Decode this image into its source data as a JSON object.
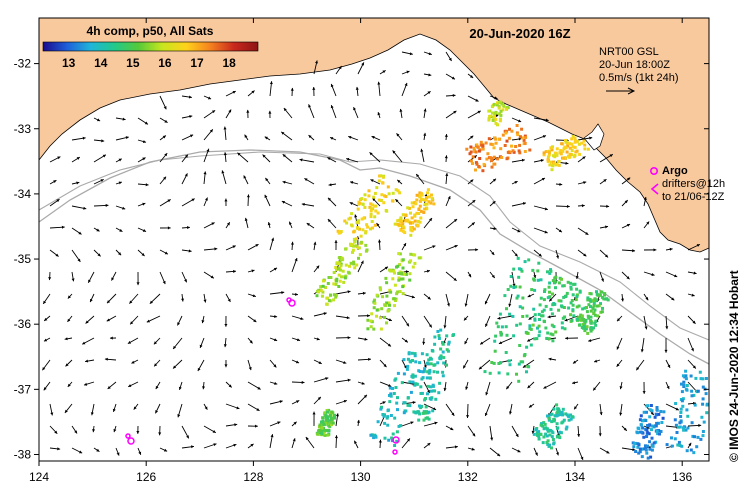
{
  "title": "20-Jun-2020 16Z",
  "colorbar": {
    "label": "4h comp, p50, All Sats",
    "ticks": [
      "13",
      "14",
      "15",
      "16",
      "17",
      "18"
    ],
    "tick_values": [
      13,
      14,
      15,
      16,
      17,
      18
    ],
    "range": [
      12.2,
      18.9
    ],
    "colors": [
      "#1a0a8c",
      "#1f5fd9",
      "#1fb5d9",
      "#22c98a",
      "#56c93a",
      "#c8e61e",
      "#ffd21a",
      "#f5821f",
      "#c8281e",
      "#8c1414"
    ]
  },
  "info": {
    "source": "NRT00 GSL",
    "time": "20-Jun 18:00Z",
    "scale": "0.5m/s (1kt 24h)"
  },
  "legend": {
    "argo": "Argo",
    "drifters": "drifters@12h",
    "drifters_to": "to 21/06-12Z"
  },
  "credit": "© IMOS 24-Jun-2020 12:34 Hobart",
  "axes": {
    "x_ticks": [
      "124",
      "126",
      "128",
      "130",
      "132",
      "134",
      "136"
    ],
    "x_values": [
      124,
      126,
      128,
      130,
      132,
      134,
      136
    ],
    "y_ticks": [
      "-32",
      "-33",
      "-34",
      "-35",
      "-36",
      "-37",
      "-38"
    ],
    "y_values": [
      -32,
      -33,
      -34,
      -35,
      -36,
      -37,
      -38
    ],
    "x_range": [
      124,
      136.5
    ],
    "y_range": [
      -31.3,
      -38.1
    ]
  },
  "colors": {
    "land": "#f9c99e",
    "sea": "#ffffff",
    "vector": "#000000",
    "isobath": "#aaaaaa",
    "argo": "#ff00ff"
  }
}
